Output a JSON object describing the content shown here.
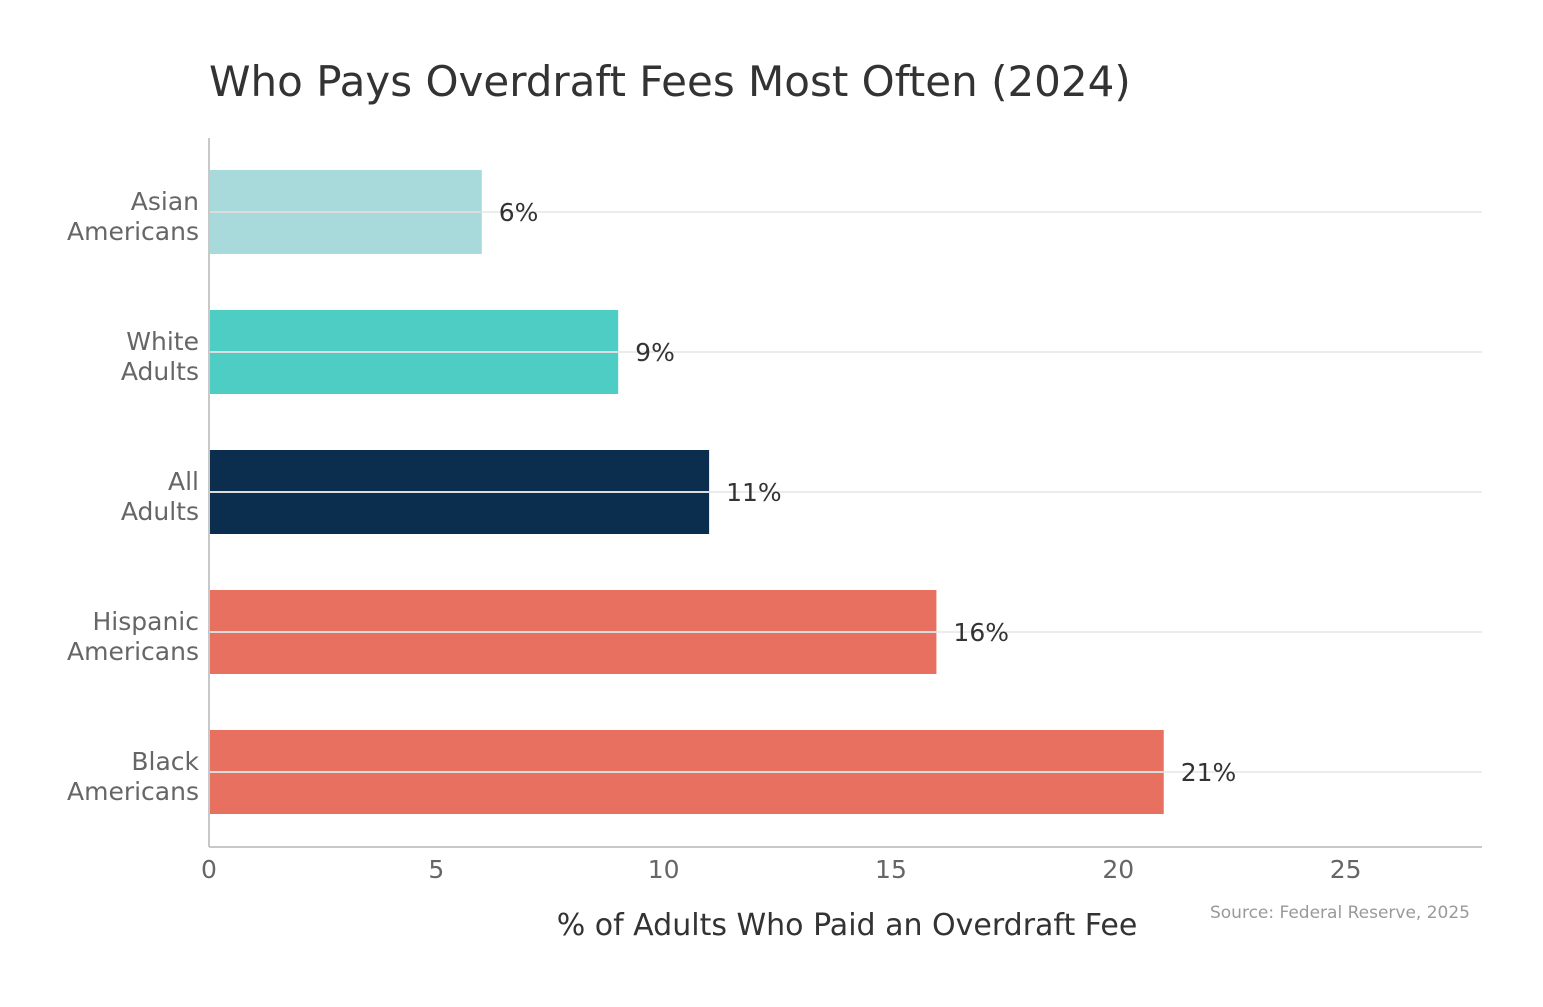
{
  "chart_data": {
    "type": "bar",
    "orientation": "horizontal",
    "title": "Who Pays Overdraft Fees Most Often (2024)",
    "xlabel": "% of Adults Who Paid an Overdraft Fee",
    "ylabel": "",
    "source": "Source: Federal Reserve, 2025",
    "categories": [
      [
        "Asian",
        "Americans"
      ],
      [
        "White",
        "Adults"
      ],
      [
        "All",
        "Adults"
      ],
      [
        "Hispanic",
        "Americans"
      ],
      [
        "Black",
        "Americans"
      ]
    ],
    "values": [
      6,
      9,
      11,
      16,
      21
    ],
    "data_labels": [
      "6%",
      "9%",
      "11%",
      "16%",
      "21%"
    ],
    "colors": [
      "#a8dadc",
      "#4ecdc4",
      "#0b2e4f",
      "#e87060",
      "#e87060"
    ],
    "xlim": [
      0,
      28
    ],
    "xticks": [
      0,
      5,
      10,
      15,
      20,
      25
    ],
    "grid": "horizontal at categories"
  }
}
